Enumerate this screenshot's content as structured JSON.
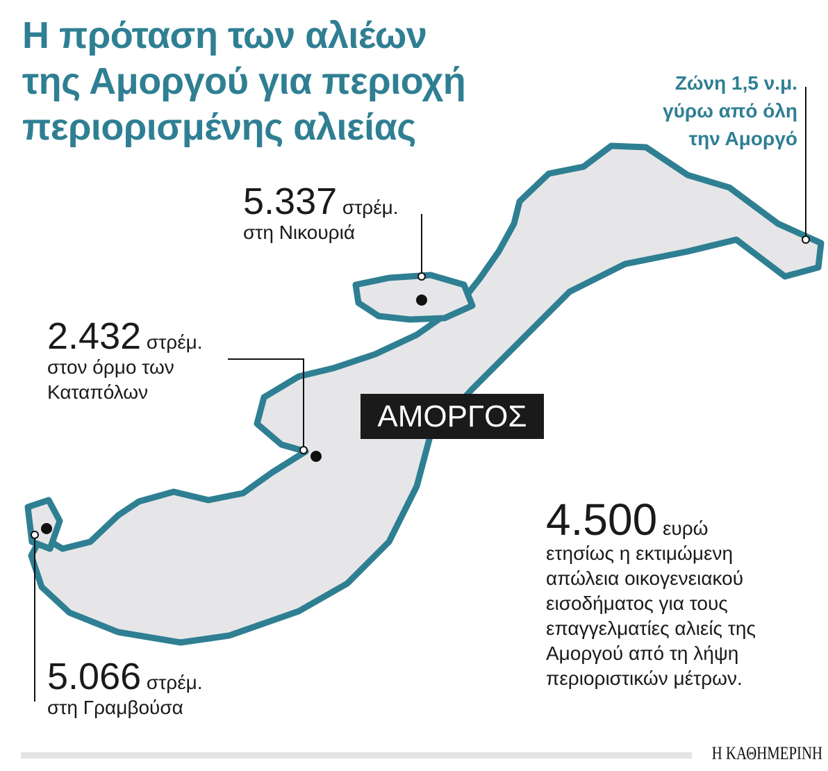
{
  "title": {
    "lines": [
      "Η πρόταση των αλιέων",
      "της Αμοργού για περιοχή",
      "περιορισμένης αλιείας"
    ]
  },
  "zone_note": {
    "lines": [
      "Ζώνη 1,5 ν.μ.",
      "γύρω από όλη",
      "την Αμοργό"
    ]
  },
  "island_name": "ΑΜΟΡΓΟΣ",
  "areas": [
    {
      "value": "5.337",
      "unit": "στρέμ.",
      "place": "στη Νικουριά"
    },
    {
      "value": "2.432",
      "unit": "στρέμ.",
      "place": "στον όρμο των",
      "place2": "Καταπόλων"
    },
    {
      "value": "5.066",
      "unit": "στρέμ.",
      "place": "στη Γραμβούσα"
    }
  ],
  "loss": {
    "value": "4.500",
    "unit": "ευρώ",
    "lines": [
      "ετησίως η εκτιμώμενη",
      "απώλεια οικογενειακού",
      "εισοδήματος για τους",
      "επαγγελματίες αλιείς της",
      "Αμοργού από τη λήψη",
      "περιοριστικών μέτρων."
    ]
  },
  "colors": {
    "accent": "#2f7f93",
    "land": "#e6e6e8"
  },
  "source_logo": "Η ΚΑΘΗΜΕΡΙΝΗ"
}
